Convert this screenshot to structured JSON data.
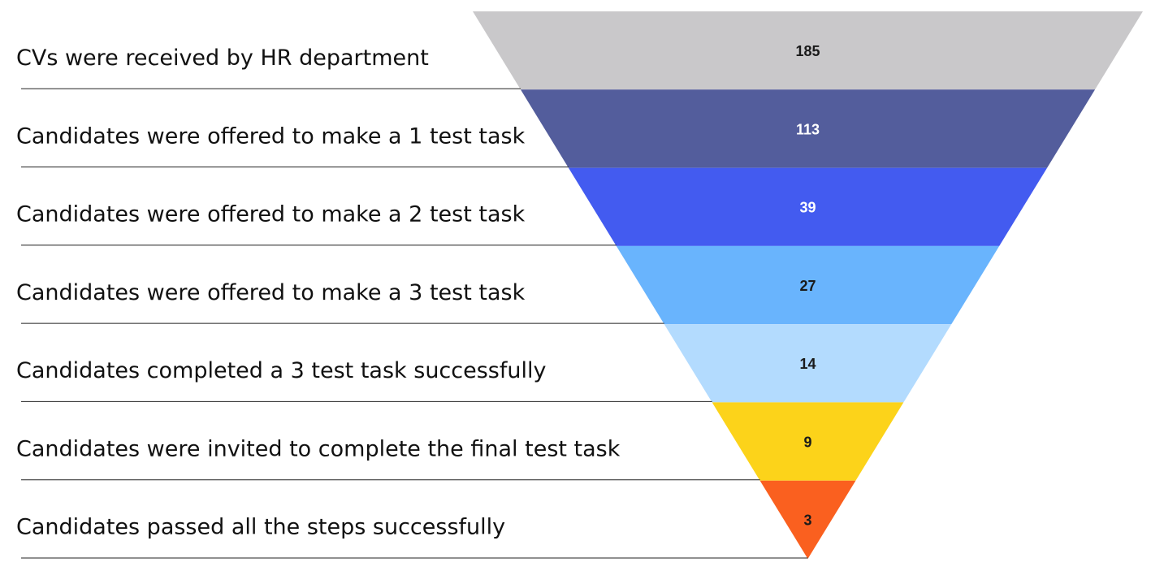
{
  "chart_data": {
    "type": "funnel",
    "stages": [
      {
        "label": "CVs were received by HR department",
        "value": 185,
        "color": "#c9c8ca",
        "text_color": "#1a1a1a"
      },
      {
        "label": "Candidates were offered to make a 1 test task",
        "value": 113,
        "color": "#535d9c",
        "text_color": "#ffffff"
      },
      {
        "label": "Candidates were offered to make a 2 test task",
        "value": 39,
        "color": "#435bf0",
        "text_color": "#ffffff"
      },
      {
        "label": "Candidates were offered to make a 3 test task",
        "value": 27,
        "color": "#69b4fd",
        "text_color": "#1a1a1a"
      },
      {
        "label": "Candidates completed a 3 test task successfully",
        "value": 14,
        "color": "#b3dbfe",
        "text_color": "#1a1a1a"
      },
      {
        "label": "Candidates were invited to complete the final test task",
        "value": 9,
        "color": "#fcd31a",
        "text_color": "#1a1a1a"
      },
      {
        "label": "Candidates passed all the steps successfully",
        "value": 3,
        "color": "#fa601f",
        "text_color": "#1a1a1a"
      }
    ]
  }
}
